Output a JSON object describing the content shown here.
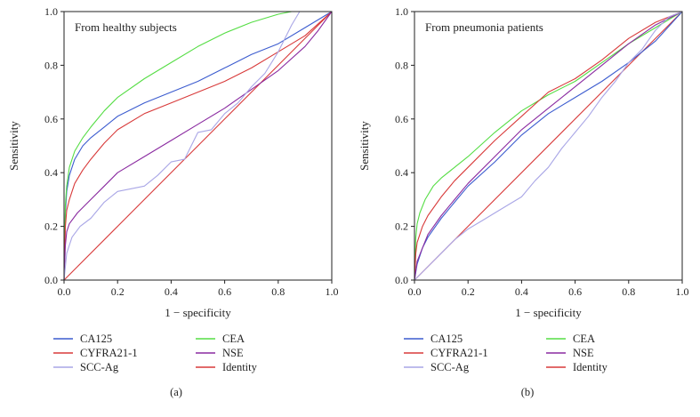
{
  "figure": {
    "colors": {
      "CA125": "#3c5ccf",
      "CEA": "#55dd44",
      "CYFRA21-1": "#d83a3a",
      "NSE": "#8a2aa0",
      "SCC-Ag": "#a9a6e6",
      "Identity": "#d83a3a"
    }
  },
  "chart_data": [
    {
      "type": "line",
      "panel_label": "(a)",
      "title": "From healthy subjects",
      "xlabel": "1 − specificity",
      "ylabel": "Sensitivity",
      "xlim": [
        0,
        1
      ],
      "ylim": [
        0,
        1
      ],
      "xticks": [
        "0.0",
        "0.2",
        "0.4",
        "0.6",
        "0.8",
        "1.0"
      ],
      "yticks": [
        "0.0",
        "0.2",
        "0.4",
        "0.6",
        "0.8",
        "1.0"
      ],
      "legend": [
        "CA125",
        "CEA",
        "CYFRA21-1",
        "NSE",
        "SCC-Ag",
        "Identity"
      ],
      "series": [
        {
          "name": "CA125",
          "points": [
            [
              0,
              0
            ],
            [
              0.005,
              0.25
            ],
            [
              0.01,
              0.33
            ],
            [
              0.02,
              0.39
            ],
            [
              0.04,
              0.45
            ],
            [
              0.07,
              0.5
            ],
            [
              0.1,
              0.53
            ],
            [
              0.15,
              0.57
            ],
            [
              0.2,
              0.61
            ],
            [
              0.3,
              0.66
            ],
            [
              0.4,
              0.7
            ],
            [
              0.5,
              0.74
            ],
            [
              0.6,
              0.79
            ],
            [
              0.7,
              0.84
            ],
            [
              0.8,
              0.88
            ],
            [
              0.9,
              0.94
            ],
            [
              1,
              1
            ]
          ]
        },
        {
          "name": "CEA",
          "points": [
            [
              0,
              0
            ],
            [
              0.005,
              0.28
            ],
            [
              0.01,
              0.35
            ],
            [
              0.02,
              0.42
            ],
            [
              0.04,
              0.48
            ],
            [
              0.07,
              0.53
            ],
            [
              0.1,
              0.57
            ],
            [
              0.15,
              0.63
            ],
            [
              0.2,
              0.68
            ],
            [
              0.3,
              0.75
            ],
            [
              0.4,
              0.81
            ],
            [
              0.5,
              0.87
            ],
            [
              0.6,
              0.92
            ],
            [
              0.7,
              0.96
            ],
            [
              0.8,
              0.99
            ],
            [
              0.85,
              1.0
            ],
            [
              1,
              1
            ]
          ]
        },
        {
          "name": "CYFRA21-1",
          "points": [
            [
              0,
              0
            ],
            [
              0.005,
              0.2
            ],
            [
              0.01,
              0.26
            ],
            [
              0.02,
              0.3
            ],
            [
              0.04,
              0.36
            ],
            [
              0.07,
              0.41
            ],
            [
              0.1,
              0.45
            ],
            [
              0.15,
              0.51
            ],
            [
              0.2,
              0.56
            ],
            [
              0.3,
              0.62
            ],
            [
              0.4,
              0.66
            ],
            [
              0.5,
              0.7
            ],
            [
              0.6,
              0.74
            ],
            [
              0.7,
              0.79
            ],
            [
              0.8,
              0.85
            ],
            [
              0.9,
              0.91
            ],
            [
              1,
              1
            ]
          ]
        },
        {
          "name": "NSE",
          "points": [
            [
              0,
              0
            ],
            [
              0.005,
              0.13
            ],
            [
              0.01,
              0.18
            ],
            [
              0.02,
              0.21
            ],
            [
              0.05,
              0.25
            ],
            [
              0.1,
              0.3
            ],
            [
              0.15,
              0.35
            ],
            [
              0.2,
              0.4
            ],
            [
              0.3,
              0.46
            ],
            [
              0.4,
              0.52
            ],
            [
              0.5,
              0.58
            ],
            [
              0.6,
              0.64
            ],
            [
              0.7,
              0.71
            ],
            [
              0.8,
              0.78
            ],
            [
              0.9,
              0.87
            ],
            [
              0.95,
              0.93
            ],
            [
              1,
              1
            ]
          ]
        },
        {
          "name": "SCC-Ag",
          "points": [
            [
              0,
              0
            ],
            [
              0.01,
              0.1
            ],
            [
              0.03,
              0.16
            ],
            [
              0.06,
              0.2
            ],
            [
              0.1,
              0.23
            ],
            [
              0.15,
              0.29
            ],
            [
              0.2,
              0.33
            ],
            [
              0.25,
              0.34
            ],
            [
              0.3,
              0.35
            ],
            [
              0.35,
              0.39
            ],
            [
              0.4,
              0.44
            ],
            [
              0.45,
              0.45
            ],
            [
              0.5,
              0.55
            ],
            [
              0.55,
              0.56
            ],
            [
              0.6,
              0.62
            ],
            [
              0.65,
              0.66
            ],
            [
              0.7,
              0.72
            ],
            [
              0.75,
              0.77
            ],
            [
              0.8,
              0.85
            ],
            [
              0.85,
              0.95
            ],
            [
              0.88,
              1.0
            ],
            [
              1,
              1
            ]
          ]
        },
        {
          "name": "Identity",
          "points": [
            [
              0,
              0
            ],
            [
              1,
              1
            ]
          ]
        }
      ]
    },
    {
      "type": "line",
      "panel_label": "(b)",
      "title": "From pneumonia patients",
      "xlabel": "1 − specificity",
      "ylabel": "Sensitivity",
      "xlim": [
        0,
        1
      ],
      "ylim": [
        0,
        1
      ],
      "xticks": [
        "0.0",
        "0.2",
        "0.4",
        "0.6",
        "0.8",
        "1.0"
      ],
      "yticks": [
        "0.0",
        "0.2",
        "0.4",
        "0.6",
        "0.8",
        "1.0"
      ],
      "legend": [
        "CA125",
        "CEA",
        "CYFRA21-1",
        "NSE",
        "SCC-Ag",
        "Identity"
      ],
      "series": [
        {
          "name": "CA125",
          "points": [
            [
              0,
              0
            ],
            [
              0.01,
              0.06
            ],
            [
              0.03,
              0.12
            ],
            [
              0.05,
              0.16
            ],
            [
              0.1,
              0.23
            ],
            [
              0.15,
              0.29
            ],
            [
              0.2,
              0.35
            ],
            [
              0.3,
              0.44
            ],
            [
              0.4,
              0.54
            ],
            [
              0.5,
              0.62
            ],
            [
              0.6,
              0.68
            ],
            [
              0.7,
              0.74
            ],
            [
              0.8,
              0.81
            ],
            [
              0.9,
              0.89
            ],
            [
              1,
              1
            ]
          ]
        },
        {
          "name": "CEA",
          "points": [
            [
              0,
              0
            ],
            [
              0.005,
              0.16
            ],
            [
              0.01,
              0.21
            ],
            [
              0.02,
              0.25
            ],
            [
              0.04,
              0.3
            ],
            [
              0.07,
              0.35
            ],
            [
              0.1,
              0.38
            ],
            [
              0.15,
              0.42
            ],
            [
              0.2,
              0.46
            ],
            [
              0.3,
              0.55
            ],
            [
              0.4,
              0.63
            ],
            [
              0.5,
              0.69
            ],
            [
              0.6,
              0.74
            ],
            [
              0.7,
              0.81
            ],
            [
              0.8,
              0.88
            ],
            [
              0.9,
              0.94
            ],
            [
              1,
              1
            ]
          ]
        },
        {
          "name": "CYFRA21-1",
          "points": [
            [
              0,
              0
            ],
            [
              0.005,
              0.1
            ],
            [
              0.01,
              0.14
            ],
            [
              0.03,
              0.2
            ],
            [
              0.05,
              0.24
            ],
            [
              0.1,
              0.31
            ],
            [
              0.15,
              0.37
            ],
            [
              0.2,
              0.42
            ],
            [
              0.3,
              0.52
            ],
            [
              0.4,
              0.61
            ],
            [
              0.5,
              0.7
            ],
            [
              0.6,
              0.75
            ],
            [
              0.7,
              0.82
            ],
            [
              0.8,
              0.9
            ],
            [
              0.9,
              0.96
            ],
            [
              1,
              1
            ]
          ]
        },
        {
          "name": "NSE",
          "points": [
            [
              0,
              0
            ],
            [
              0.01,
              0.07
            ],
            [
              0.03,
              0.12
            ],
            [
              0.05,
              0.17
            ],
            [
              0.1,
              0.24
            ],
            [
              0.15,
              0.3
            ],
            [
              0.2,
              0.36
            ],
            [
              0.3,
              0.46
            ],
            [
              0.4,
              0.56
            ],
            [
              0.5,
              0.64
            ],
            [
              0.6,
              0.72
            ],
            [
              0.7,
              0.8
            ],
            [
              0.8,
              0.88
            ],
            [
              0.9,
              0.95
            ],
            [
              1,
              1
            ]
          ]
        },
        {
          "name": "SCC-Ag",
          "points": [
            [
              0,
              0
            ],
            [
              0.05,
              0.05
            ],
            [
              0.1,
              0.1
            ],
            [
              0.15,
              0.15
            ],
            [
              0.2,
              0.19
            ],
            [
              0.25,
              0.22
            ],
            [
              0.3,
              0.25
            ],
            [
              0.35,
              0.28
            ],
            [
              0.4,
              0.31
            ],
            [
              0.45,
              0.37
            ],
            [
              0.5,
              0.42
            ],
            [
              0.55,
              0.49
            ],
            [
              0.6,
              0.55
            ],
            [
              0.65,
              0.61
            ],
            [
              0.7,
              0.68
            ],
            [
              0.75,
              0.74
            ],
            [
              0.8,
              0.81
            ],
            [
              0.85,
              0.86
            ],
            [
              0.9,
              0.93
            ],
            [
              0.95,
              0.98
            ],
            [
              1,
              1
            ]
          ]
        },
        {
          "name": "Identity",
          "points": [
            [
              0,
              0
            ],
            [
              1,
              1
            ]
          ]
        }
      ]
    }
  ]
}
